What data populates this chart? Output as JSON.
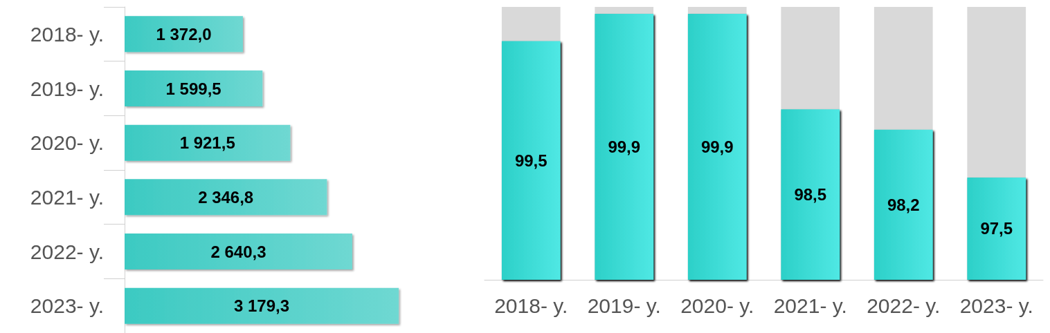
{
  "chart_data": [
    {
      "type": "bar",
      "orientation": "horizontal",
      "categories": [
        "2018- y.",
        "2019- y.",
        "2020- y.",
        "2021- y.",
        "2022- y.",
        "2023- y."
      ],
      "values": [
        1372.0,
        1599.5,
        1921.5,
        2346.8,
        2640.3,
        3179.3
      ],
      "value_labels": [
        "1 372,0",
        "1 599,5",
        "1 921,5",
        "2 346,8",
        "2 640,3",
        "3 179,3"
      ],
      "color": "#3ccac2",
      "tick_labels": "y"
    },
    {
      "type": "bar",
      "categories": [
        "2018- y.",
        "2019- y.",
        "2020- y.",
        "2021- y.",
        "2022- y.",
        "2023- y."
      ],
      "values": [
        99.5,
        99.9,
        99.9,
        98.5,
        98.2,
        97.5
      ],
      "value_labels": [
        "99,5",
        "99,9",
        "99,9",
        "98,5",
        "98,2",
        "97,5"
      ],
      "color": "#2cd0c8",
      "ylim": [
        96,
        100
      ],
      "tick_labels": "x"
    }
  ]
}
